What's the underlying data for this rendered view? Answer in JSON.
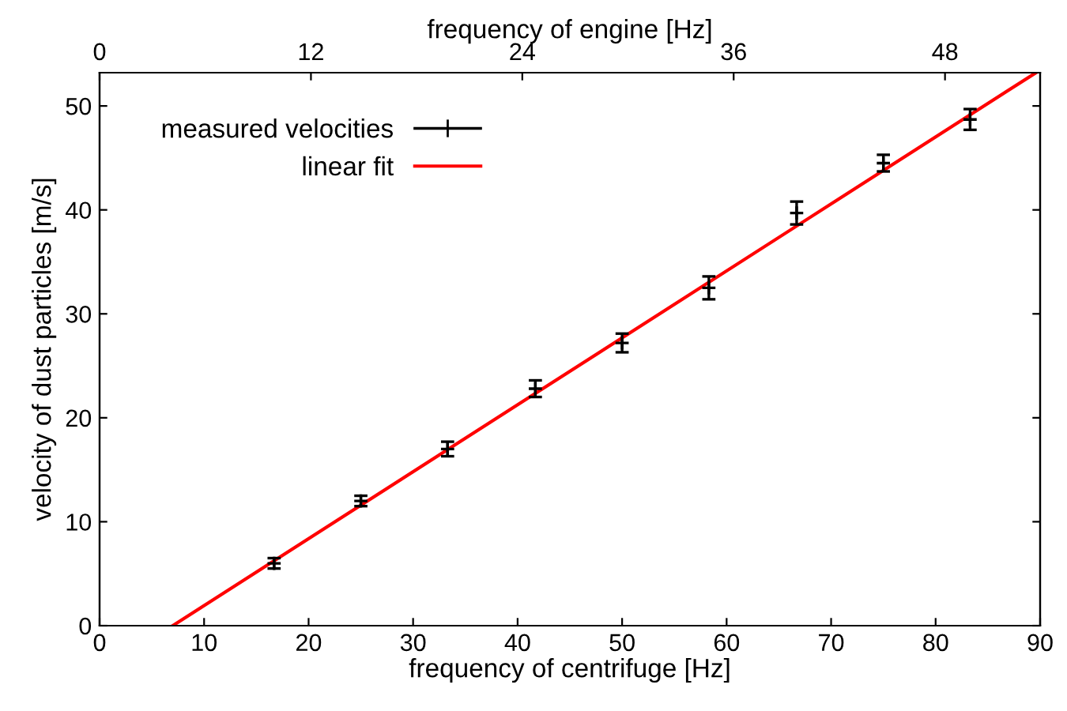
{
  "chart_data": {
    "type": "scatter",
    "xlabel": "frequency of centrifuge [Hz]",
    "ylabel": "velocity of dust particles [m/s]",
    "x2label": "frequency of engine [Hz]",
    "xlim": [
      0,
      90
    ],
    "xticks": [
      0,
      10,
      20,
      30,
      40,
      50,
      60,
      70,
      80,
      90
    ],
    "ylim": [
      0,
      53.2
    ],
    "yticks": [
      0,
      10,
      20,
      30,
      40,
      50
    ],
    "x2lim": [
      0,
      53.4
    ],
    "x2ticks": [
      0,
      12,
      24,
      36,
      48
    ],
    "grid": false,
    "legend": "top left",
    "series": [
      {
        "name": "measured velocities",
        "color": "#000000",
        "marker": "cross",
        "x": [
          16.7,
          25,
          33.3,
          41.7,
          50,
          58.3,
          66.7,
          75,
          83.3
        ],
        "values": [
          6,
          12,
          17,
          22.8,
          27.2,
          32.5,
          39.7,
          44.5,
          48.7
        ],
        "errors": [
          0.5,
          0.5,
          0.7,
          0.8,
          0.9,
          1.1,
          1.1,
          0.8,
          1.0
        ]
      },
      {
        "name": "linear fit",
        "type": "line",
        "color": "#ff0000",
        "line_style": "solid",
        "x": [
          7,
          89.6
        ],
        "values": [
          0,
          53.2
        ]
      }
    ]
  }
}
